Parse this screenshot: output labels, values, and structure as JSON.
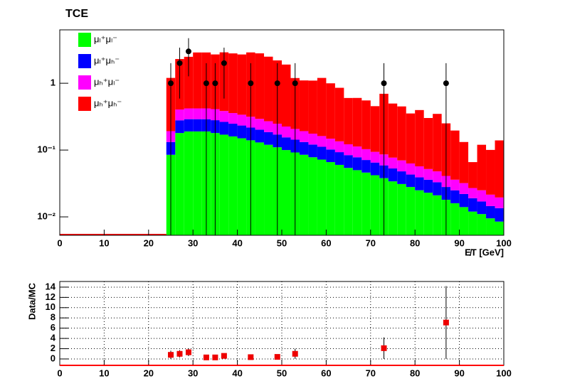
{
  "chart_data": [
    {
      "type": "stacked_histogram",
      "title": "TCE",
      "xlabel": "E̸T [GeV]",
      "log_y": true,
      "bins": [
        24,
        26,
        28,
        30,
        32,
        34,
        36,
        38,
        40,
        42,
        44,
        46,
        48,
        50,
        52,
        54,
        56,
        58,
        60,
        62,
        64,
        66,
        68,
        70,
        72,
        74,
        76,
        78,
        80,
        82,
        84,
        86,
        88,
        90,
        92,
        94,
        96,
        98,
        100
      ],
      "series": [
        {
          "name": "μₗ⁺μₗ⁻",
          "color": "#00ff00",
          "values": [
            0.085,
            0.18,
            0.19,
            0.19,
            0.19,
            0.18,
            0.17,
            0.16,
            0.15,
            0.14,
            0.13,
            0.12,
            0.11,
            0.1,
            0.092,
            0.085,
            0.078,
            0.072,
            0.066,
            0.06,
            0.054,
            0.05,
            0.046,
            0.042,
            0.038,
            0.034,
            0.031,
            0.028,
            0.025,
            0.023,
            0.021,
            0.018,
            0.016,
            0.014,
            0.012,
            0.011,
            0.0095,
            0.0085
          ]
        },
        {
          "name": "μₗ⁺μₕ⁻",
          "color": "#0000ff",
          "values": [
            0.047,
            0.099,
            0.1,
            0.1,
            0.1,
            0.1,
            0.094,
            0.088,
            0.083,
            0.077,
            0.072,
            0.066,
            0.061,
            0.055,
            0.051,
            0.047,
            0.043,
            0.04,
            0.036,
            0.033,
            0.03,
            0.028,
            0.025,
            0.023,
            0.021,
            0.019,
            0.017,
            0.015,
            0.014,
            0.013,
            0.012,
            0.01,
            0.009,
            0.008,
            0.007,
            0.006,
            0.005,
            0.005
          ]
        },
        {
          "name": "μₕ⁺μₗ⁻",
          "color": "#ff00ff",
          "values": [
            0.06,
            0.126,
            0.13,
            0.13,
            0.13,
            0.13,
            0.12,
            0.11,
            0.105,
            0.098,
            0.091,
            0.084,
            0.077,
            0.07,
            0.064,
            0.06,
            0.055,
            0.05,
            0.046,
            0.042,
            0.038,
            0.035,
            0.032,
            0.029,
            0.027,
            0.024,
            0.022,
            0.02,
            0.018,
            0.016,
            0.015,
            0.013,
            0.011,
            0.01,
            0.008,
            0.008,
            0.007,
            0.006
          ]
        },
        {
          "name": "μₕ⁺μₕ⁻",
          "color": "#ff0000",
          "values": [
            1.01,
            1.9,
            2.07,
            2.47,
            2.47,
            2.29,
            2.52,
            2.44,
            2.36,
            2.58,
            2.51,
            2.23,
            1.95,
            1.68,
            0.99,
            0.91,
            0.92,
            1.04,
            0.85,
            0.72,
            0.48,
            0.49,
            0.45,
            0.36,
            0.61,
            0.42,
            0.38,
            0.29,
            0.34,
            0.25,
            0.3,
            0.21,
            0.16,
            0.1,
            0.039,
            0.095,
            0.079,
            0.12
          ]
        }
      ],
      "data": {
        "x": [
          25,
          27,
          29,
          33,
          35,
          37,
          43,
          49,
          53,
          73,
          87
        ],
        "values": [
          1,
          2,
          3,
          1,
          1,
          2,
          1,
          1,
          1,
          1,
          1
        ],
        "errors": [
          1,
          1.41,
          1.73,
          1,
          1,
          1.41,
          1,
          1,
          1,
          1,
          1
        ],
        "color": "#000000"
      },
      "xlim": [
        0,
        100
      ],
      "xticks": [
        0,
        10,
        20,
        30,
        40,
        50,
        60,
        70,
        80,
        90,
        100
      ],
      "ylim": [
        0.0053,
        6.3
      ],
      "yticks": [
        {
          "value": 0.01,
          "label": "10⁻²"
        },
        {
          "value": 0.1,
          "label": "10⁻¹"
        },
        1
      ]
    },
    {
      "type": "ratio",
      "ylabel": "Data/MC",
      "grid": true,
      "color": "#ee0000",
      "x": [
        25,
        27,
        29,
        33,
        35,
        37,
        43,
        49,
        53,
        73,
        87
      ],
      "values": [
        0.8,
        1.0,
        1.3,
        0.3,
        0.3,
        0.6,
        0.35,
        0.4,
        1.0,
        2.1,
        7.1
      ],
      "errors": [
        0.8,
        0.71,
        0.75,
        0.3,
        0.3,
        0.42,
        0.35,
        0.4,
        1.0,
        2.1,
        7.1
      ],
      "xlim": [
        0,
        100
      ],
      "xticks": [
        0,
        10,
        20,
        30,
        40,
        50,
        60,
        70,
        80,
        90,
        100
      ],
      "ylim": [
        -1.25,
        15.1
      ],
      "yticks": [
        0,
        2,
        4,
        6,
        8,
        10,
        12,
        14
      ]
    }
  ]
}
